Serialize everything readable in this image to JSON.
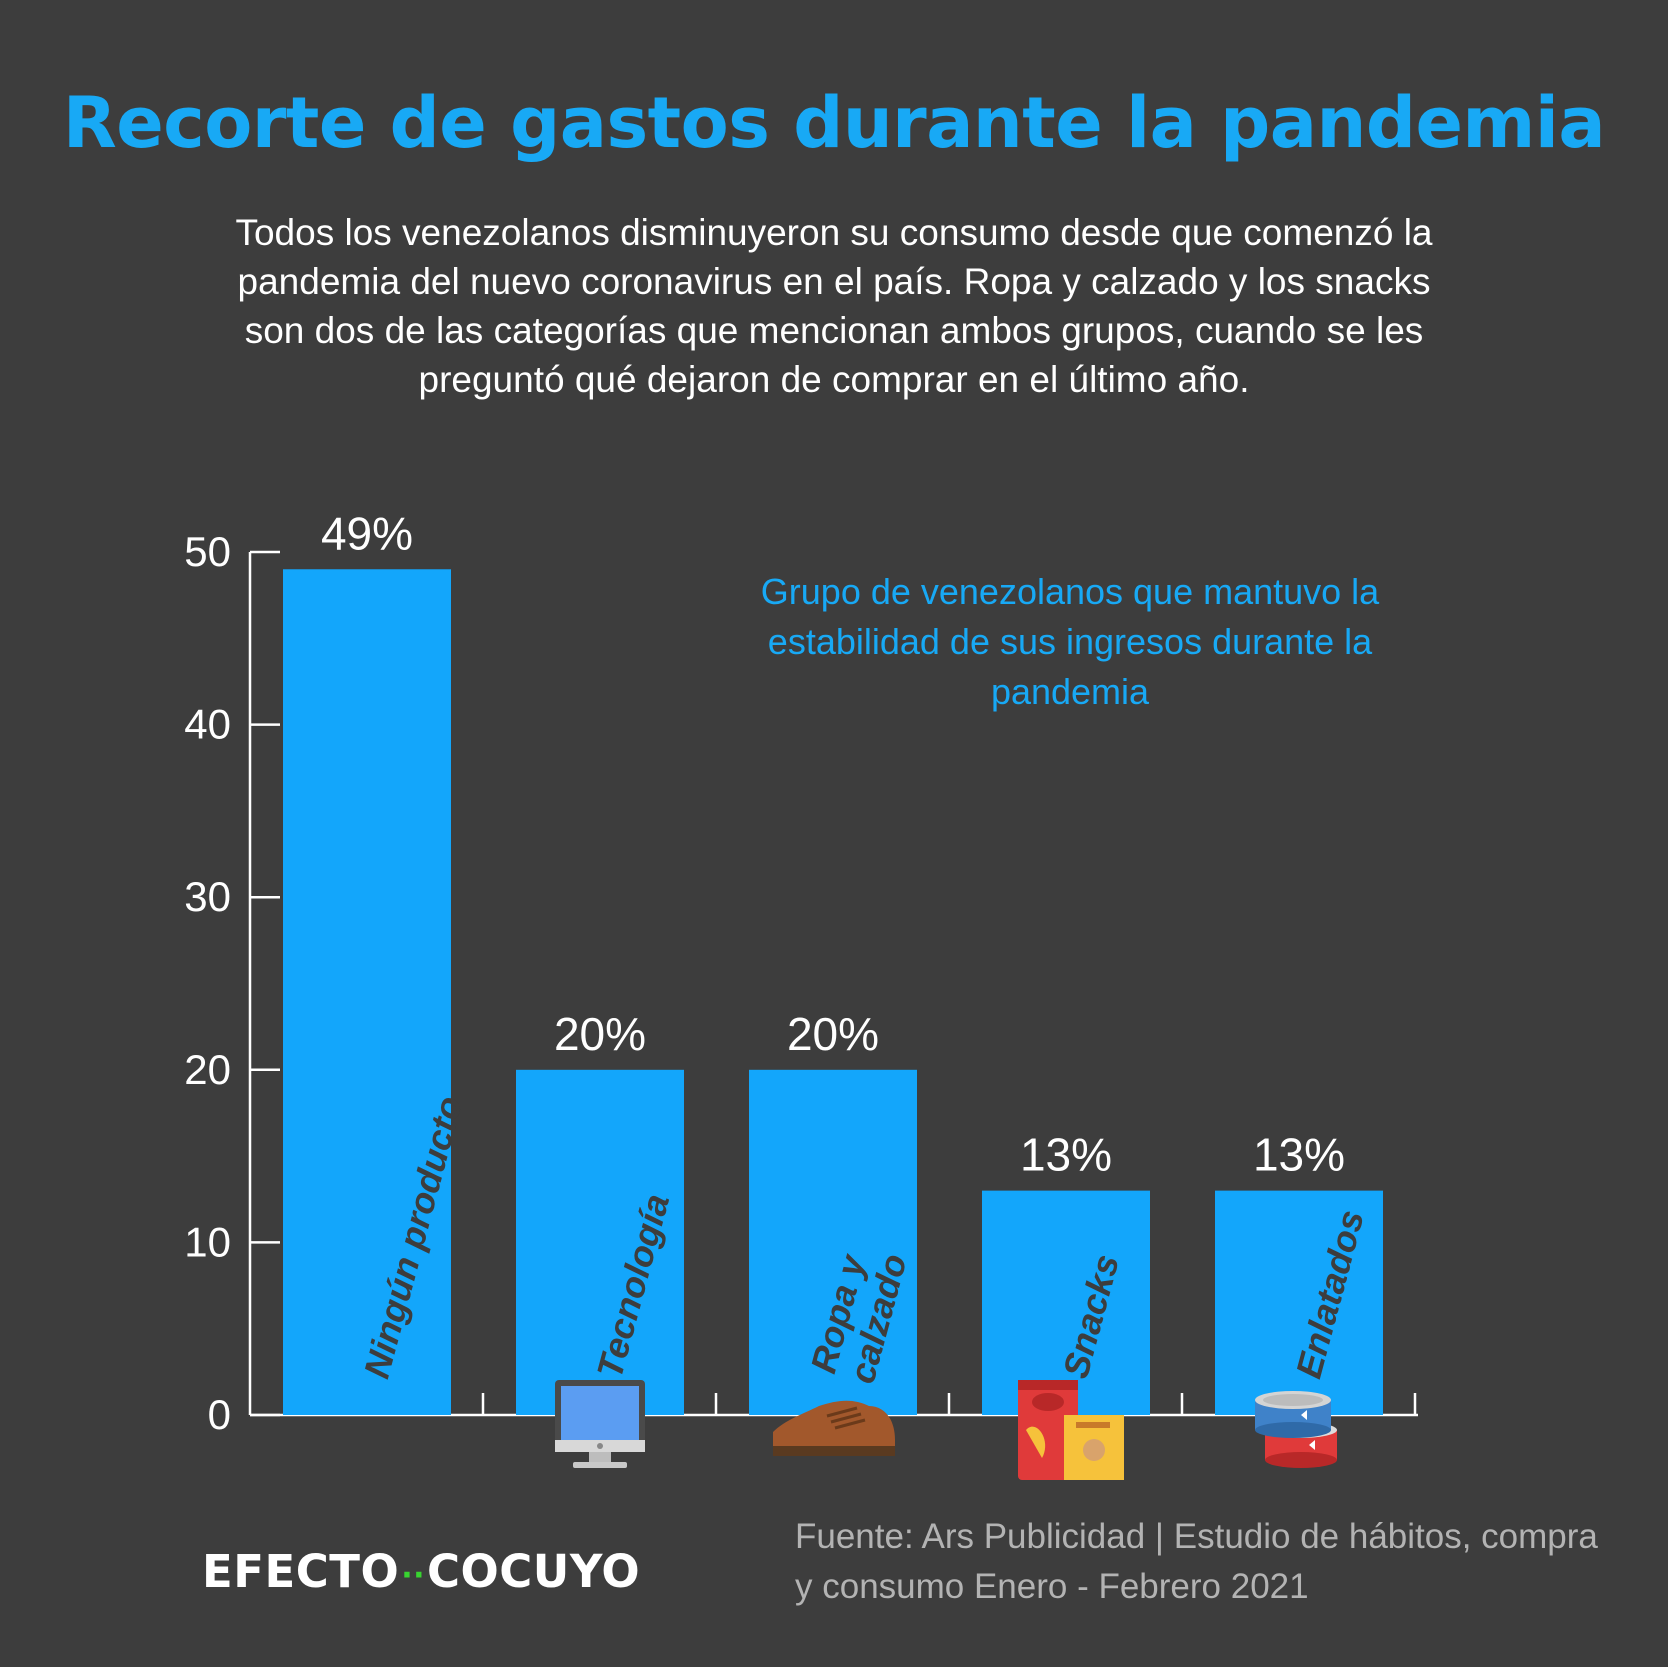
{
  "title": "Recorte de gastos durante la pandemia",
  "subtitle": "Todos los venezolanos disminuyeron su consumo desde que comenzó la pandemia del nuevo coronavirus en el país. Ropa y calzado y los snacks son dos de las categorías que mencionan ambos grupos, cuando se les preguntó qué dejaron de comprar en el último año.",
  "legend_note": "Grupo de venezolanos que mantuvo la estabilidad de sus ingresos durante la pandemia",
  "logo": {
    "left": "EFECTO",
    "dots": "··",
    "right": "COCUYO"
  },
  "source": "Fuente: Ars Publicidad | Estudio de hábitos, compra y consumo Enero - Febrero 2021",
  "colors": {
    "background": "#3d3d3d",
    "accent": "#18a9f5",
    "bar": "#13a6fb",
    "text": "#ffffff",
    "source": "#b3b3b3",
    "logo_dots": "#38d430"
  },
  "chart_data": {
    "type": "bar",
    "categories": [
      "Ningún producto",
      "Tecnología",
      "Ropa y calzado",
      "Snacks",
      "Enlatados"
    ],
    "category_lines": [
      [
        "Ningún producto"
      ],
      [
        "Tecnología"
      ],
      [
        "Ropa y",
        "calzado"
      ],
      [
        "Snacks"
      ],
      [
        "Enlatados"
      ]
    ],
    "values": [
      49,
      20,
      20,
      13,
      13
    ],
    "value_labels": [
      "49%",
      "20%",
      "20%",
      "13%",
      "13%"
    ],
    "icons": [
      "none",
      "monitor-icon",
      "shoe-icon",
      "snacks-icon",
      "canned-food-icon"
    ],
    "ylim": [
      0,
      50
    ],
    "yticks": [
      0,
      10,
      20,
      30,
      40,
      50
    ],
    "grid": false,
    "title": "",
    "xlabel": "",
    "ylabel": ""
  }
}
